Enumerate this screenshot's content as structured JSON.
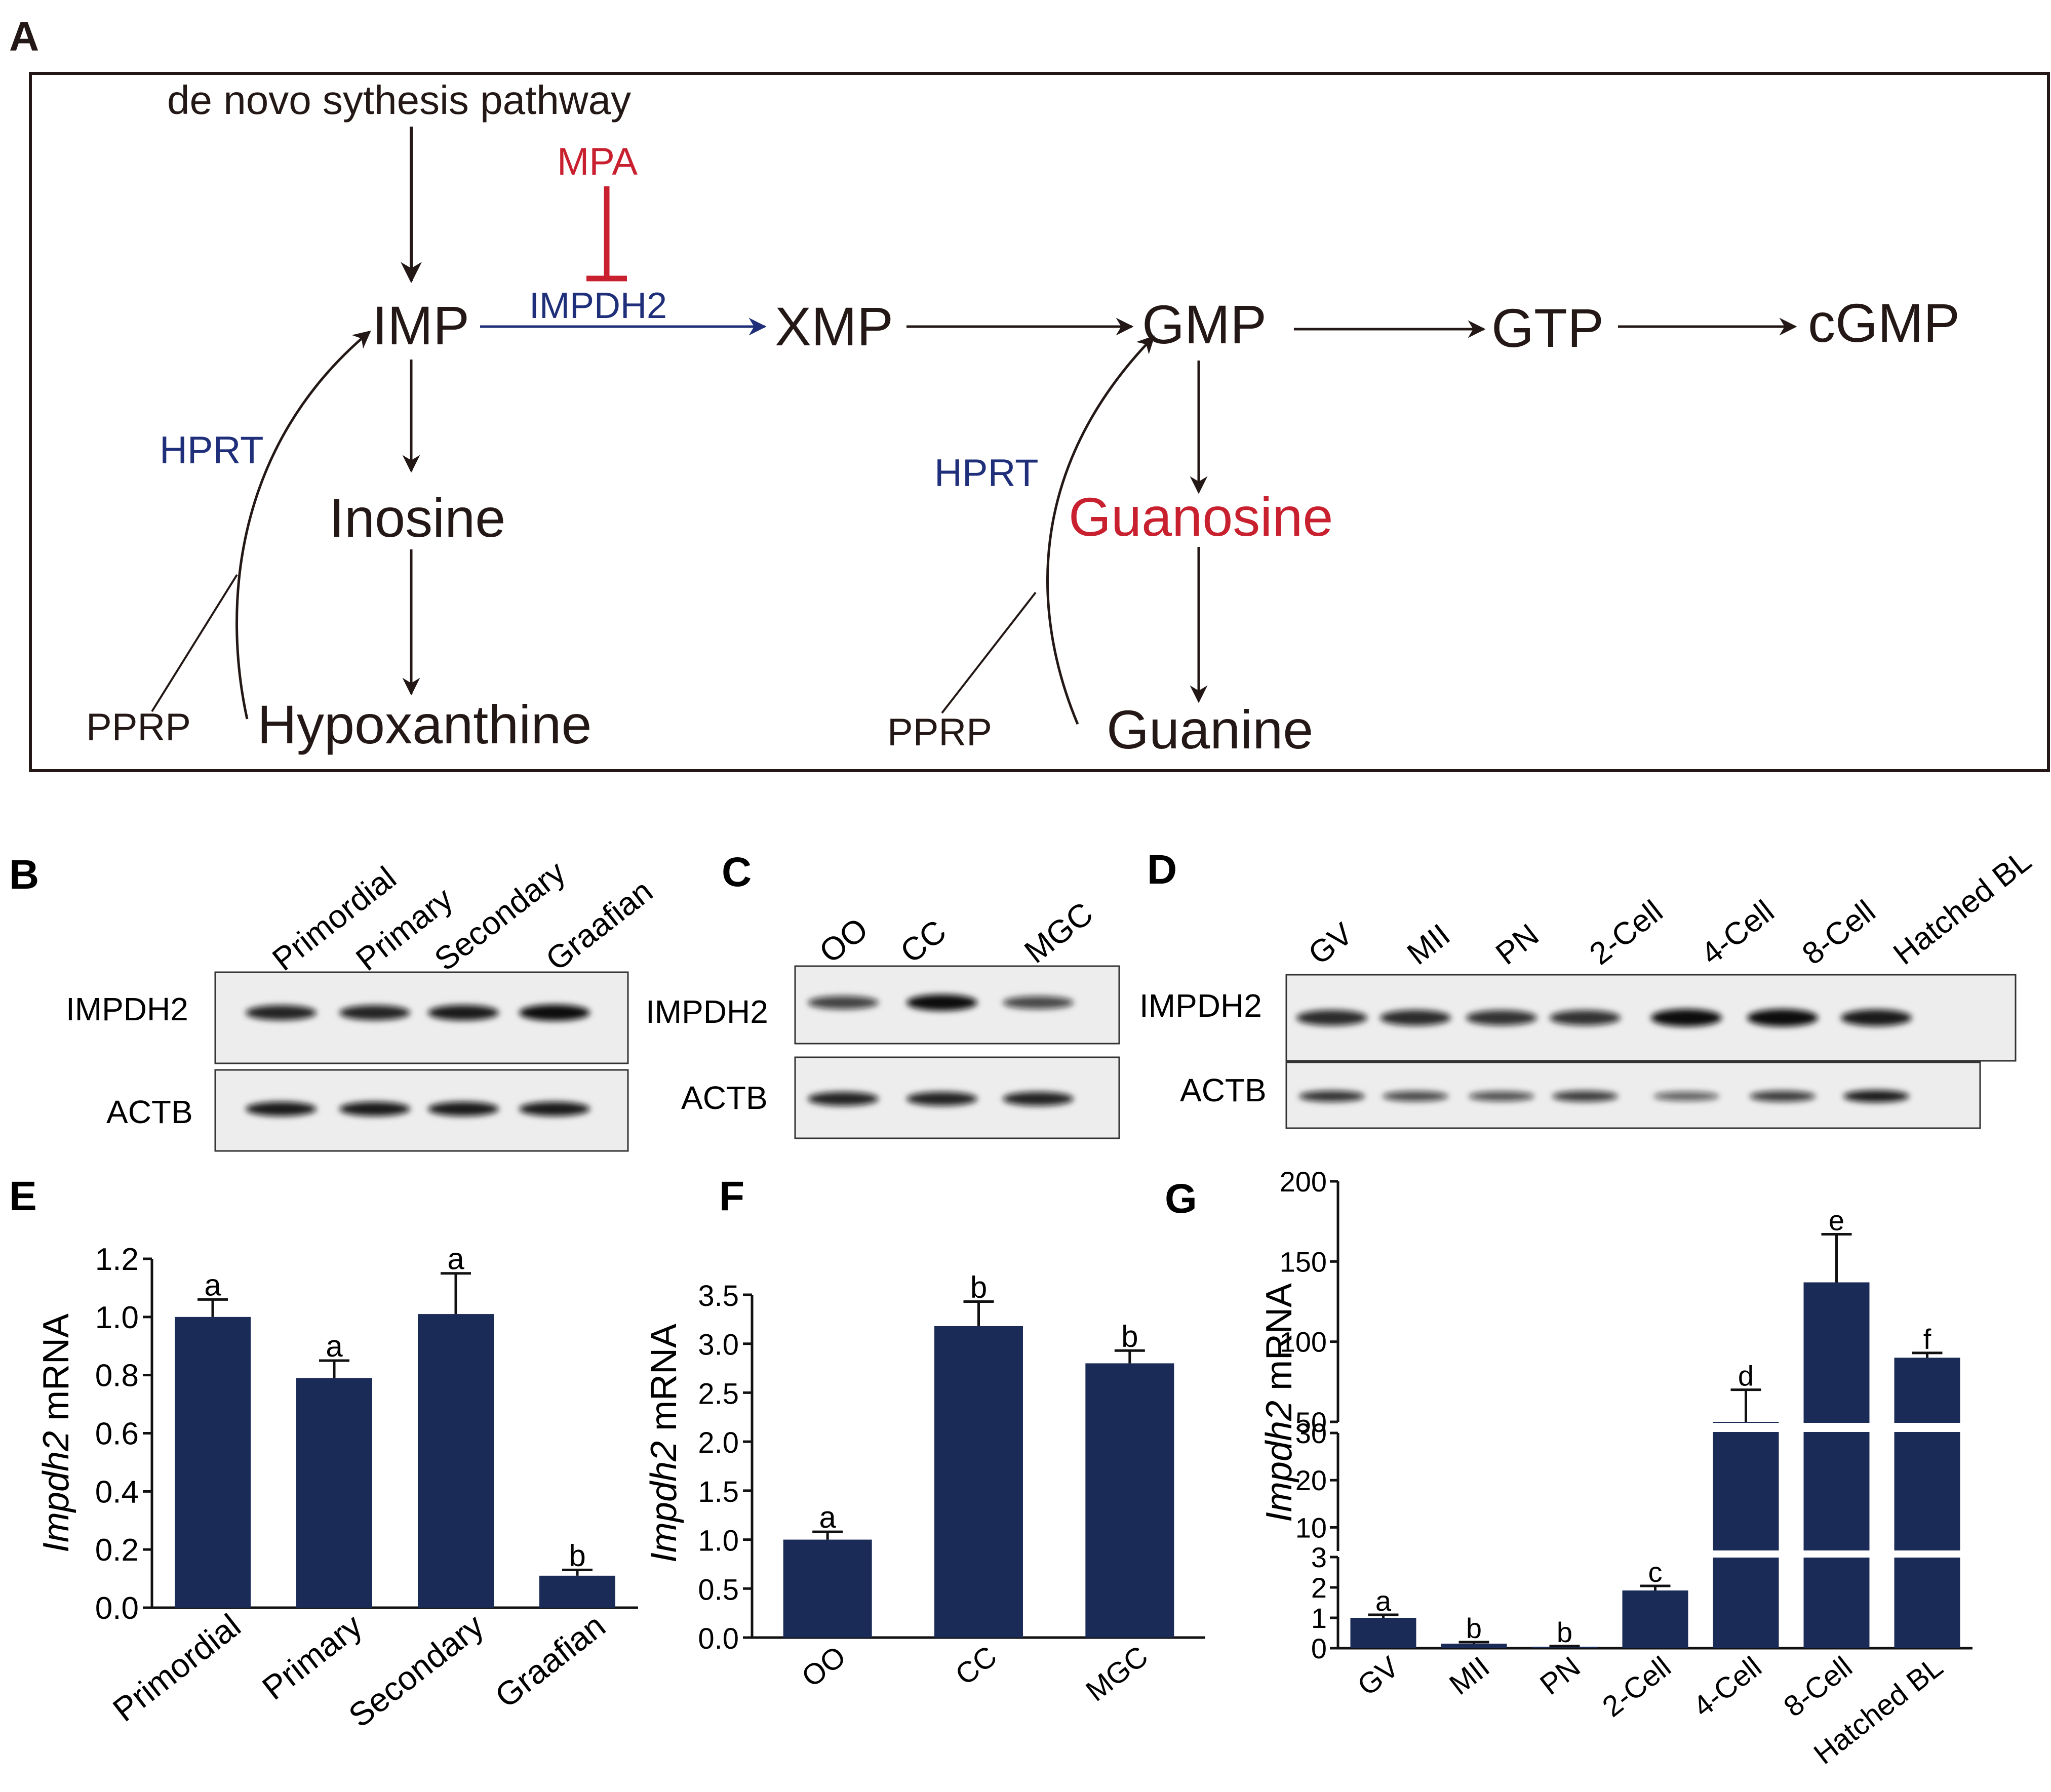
{
  "panels": {
    "a": "A",
    "b": "B",
    "c": "C",
    "d": "D",
    "e": "E",
    "f": "F",
    "g": "G"
  },
  "pathway": {
    "de_novo": "de novo sythesis pathway",
    "mpa": "MPA",
    "impdh2": "IMPDH2",
    "imp": "IMP",
    "xmp": "XMP",
    "gmp": "GMP",
    "gtp": "GTP",
    "cgmp": "cGMP",
    "hprt1": "HPRT",
    "hprt2": "HPRT",
    "inosine": "Inosine",
    "guanosine": "Guanosine",
    "hypoxanthine": "Hypoxanthine",
    "guanine": "Guanine",
    "pprp1": "PPRP",
    "pprp2": "PPRP",
    "colors": {
      "inhibitor": "#c8202f",
      "enzyme": "#1f2f7a",
      "text": "#231815"
    }
  },
  "blots": {
    "b": {
      "lanes": [
        "Primordial",
        "Primary",
        "Secondary",
        "Graafian"
      ],
      "row1": "IMPDH2",
      "row2": "ACTB",
      "impdh2_intensity": [
        0.85,
        0.85,
        0.9,
        1.0
      ],
      "actb_intensity": [
        0.9,
        0.9,
        0.9,
        0.9
      ]
    },
    "c": {
      "lanes": [
        "OO",
        "CC",
        "MGC"
      ],
      "row1": "IMPDH2",
      "row2": "ACTB",
      "impdh2_intensity": [
        0.65,
        1.0,
        0.6
      ],
      "actb_intensity": [
        0.85,
        0.85,
        0.85
      ]
    },
    "d": {
      "lanes": [
        "GV",
        "MII",
        "PN",
        "2-Cell",
        "4-Cell",
        "8-Cell",
        "Hatched BL"
      ],
      "row1": "IMPDH2",
      "row2": "ACTB",
      "impdh2_intensity": [
        0.8,
        0.8,
        0.75,
        0.75,
        1.0,
        1.0,
        0.9
      ],
      "actb_intensity": [
        0.75,
        0.6,
        0.55,
        0.7,
        0.45,
        0.7,
        0.9
      ]
    }
  },
  "chart_data": [
    {
      "panel": "E",
      "type": "bar",
      "categories": [
        "Primordial",
        "Primary",
        "Secondary",
        "Graafian"
      ],
      "values": [
        1.0,
        0.79,
        1.01,
        0.11
      ],
      "errors": [
        0.06,
        0.06,
        0.14,
        0.02
      ],
      "letters": [
        "a",
        "a",
        "a",
        "b"
      ],
      "ylabel_italic": "Impdh2",
      "ylabel_rest": " mRNA",
      "ylim": [
        0,
        1.2
      ],
      "yticks": [
        "0.0",
        "0.2",
        "0.4",
        "0.6",
        "0.8",
        "1.0",
        "1.2"
      ]
    },
    {
      "panel": "F",
      "type": "bar",
      "categories": [
        "OO",
        "CC",
        "MGC"
      ],
      "values": [
        1.0,
        3.18,
        2.8
      ],
      "errors": [
        0.08,
        0.25,
        0.13
      ],
      "letters": [
        "a",
        "b",
        "b"
      ],
      "ylabel_italic": "Impdh2",
      "ylabel_rest": " mRNA",
      "ylim": [
        0,
        3.5
      ],
      "yticks": [
        "0.0",
        "0.5",
        "1.0",
        "1.5",
        "2.0",
        "2.5",
        "3.0",
        "3.5"
      ]
    },
    {
      "panel": "G",
      "type": "bar",
      "categories": [
        "GV",
        "MII",
        "PN",
        "2-Cell",
        "4-Cell",
        "8-Cell",
        "Hatched BL"
      ],
      "values": [
        1.0,
        0.15,
        0.05,
        1.9,
        50,
        137,
        90
      ],
      "errors": [
        0.1,
        0.05,
        0.02,
        0.15,
        20,
        30,
        3
      ],
      "letters": [
        "a",
        "b",
        "b",
        "c",
        "d",
        "e",
        "f"
      ],
      "ylabel_italic": "Impdh2",
      "ylabel_rest": "  mRNA",
      "ylim": [
        0,
        200
      ],
      "axis_breaks": [
        [
          3,
          5
        ],
        [
          30,
          50
        ]
      ],
      "yticks": [
        "0",
        "1",
        "2",
        "3",
        "10",
        "20",
        "30",
        "50",
        "100",
        "150",
        "200"
      ]
    }
  ]
}
